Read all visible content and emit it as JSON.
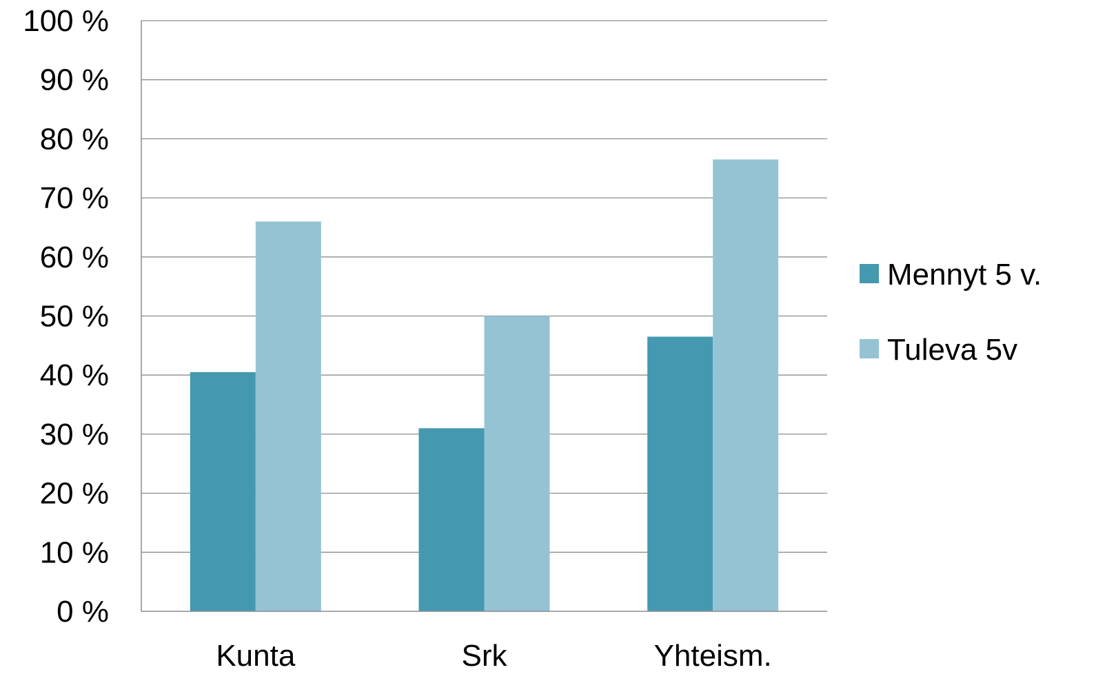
{
  "chart_data": {
    "type": "bar",
    "categories": [
      "Kunta",
      "Srk",
      "Yhteism."
    ],
    "series": [
      {
        "name": "Mennyt 5 v.",
        "values": [
          40.5,
          31,
          46.5
        ],
        "color": "#4499B0"
      },
      {
        "name": "Tuleva 5v",
        "values": [
          66,
          50,
          76.5
        ],
        "color": "#95C3D4"
      }
    ],
    "ylim": [
      0,
      100
    ],
    "yticks": [
      0,
      10,
      20,
      30,
      40,
      50,
      60,
      70,
      80,
      90,
      100
    ],
    "ytick_labels": [
      "0 %",
      "10 %",
      "20 %",
      "30 %",
      "40 %",
      "50 %",
      "60 %",
      "70 %",
      "80 %",
      "90 %",
      "100 %"
    ],
    "grid": true,
    "legend_position": "right",
    "title": "",
    "xlabel": "",
    "ylabel": ""
  }
}
